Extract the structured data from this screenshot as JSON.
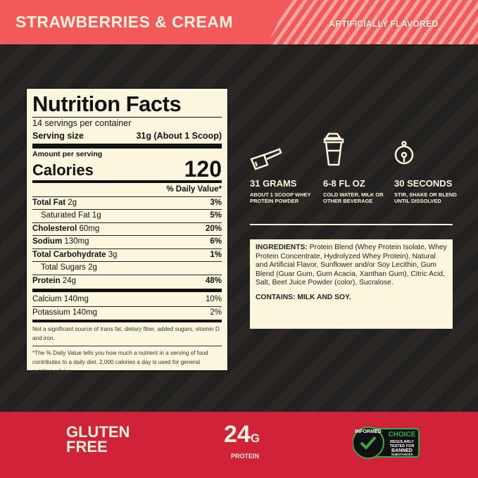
{
  "header": {
    "flavor": "STRAWBERRIES & CREAM",
    "note": "ARTIFICIALLY FLAVORED"
  },
  "nutrition": {
    "title": "Nutrition Facts",
    "servings": "14 servings per container",
    "serving_size_label": "Serving size",
    "serving_size": "31g (About 1 Scoop)",
    "amount_label": "Amount per serving",
    "calories_label": "Calories",
    "calories": "120",
    "dv_header": "% Daily Value*",
    "rows": [
      {
        "name": "Total Fat",
        "amount": "2g",
        "dv": "3%"
      },
      {
        "name": "Saturated Fat",
        "amount": "1g",
        "dv": "5%"
      },
      {
        "name": "Cholesterol",
        "amount": "60mg",
        "dv": "20%"
      },
      {
        "name": "Sodium",
        "amount": "130mg",
        "dv": "6%"
      },
      {
        "name": "Total Carbohydrate",
        "amount": "3g",
        "dv": "1%"
      },
      {
        "name": "Total Sugars",
        "amount": "2g",
        "dv": ""
      },
      {
        "name": "Protein",
        "amount": "24g",
        "dv": "48%"
      },
      {
        "name": "Calcium",
        "amount": "140mg",
        "dv": "10%"
      },
      {
        "name": "Potassium",
        "amount": "140mg",
        "dv": "2%"
      }
    ],
    "not_significant": "Not a significant source of trans fat, dietary fiber, added sugars, vitamin D and iron.",
    "footnote": "*The % Daily Value tells you how much a nutrient in a serving of food contributes to a daily diet. 2,000 calories a day is used for general nutrition advice."
  },
  "directions": [
    {
      "icon": "scoop-icon",
      "title": "31 GRAMS",
      "text": "ABOUT 1 SCOOP WHEY PROTEIN POWDER"
    },
    {
      "icon": "shaker-icon",
      "title": "6-8 FL OZ",
      "text": "COLD WATER, MILK OR OTHER BEVERAGE"
    },
    {
      "icon": "timer-icon",
      "title": "30 SECONDS",
      "text": "STIR, SHAKE OR BLEND UNTIL DISSOLVED"
    }
  ],
  "ingredients": {
    "label": "INGREDIENTS:",
    "text": " Protein Blend (Whey Protein Isolate, Whey Protein Concentrate, Hydrolyzed Whey Protein), Natural and Artificial Flavor, Sunflower and/or Soy Lecithin, Gum Blend (Guar Gum, Gum Acacia, Xanthan Gum), Citric Acid, Salt, Beet Juice Powder (color), Sucralose.",
    "contains": "CONTAINS: MILK AND SOY."
  },
  "footer": {
    "gluten_line1": "GLUTEN",
    "gluten_line2": "FREE",
    "protein_value": "24",
    "protein_unit": "G",
    "protein_label": "PROTEIN",
    "badge": {
      "ring": "INFORMED",
      "sub": "WE TEST · YOU TRUST",
      "choice": "CHOICE",
      "line1": "REGULARLY",
      "line2": "TESTED FOR",
      "line3": "BANNED",
      "line4": "SUBSTANCES"
    }
  },
  "colors": {
    "header": "#f25a5a",
    "footer": "#d0233a",
    "cream": "#fdf6de",
    "badge_green": "#3aa84a"
  }
}
